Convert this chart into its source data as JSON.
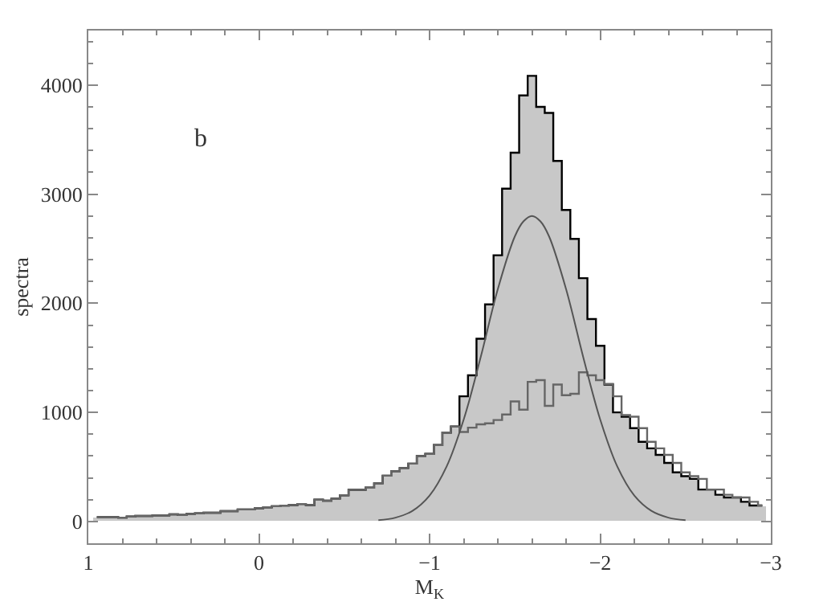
{
  "chart_data": {
    "type": "histogram",
    "xlabel": "M$_{K}$",
    "ylabel": "spectra",
    "annotations": [
      "b"
    ],
    "bins": [
      0.975,
      0.925,
      0.875,
      0.825,
      0.775,
      0.725,
      0.675,
      0.625,
      0.575,
      0.525,
      0.475,
      0.425,
      0.375,
      0.325,
      0.275,
      0.225,
      0.175,
      0.125,
      0.075,
      0.025,
      -0.025,
      -0.075,
      -0.125,
      -0.175,
      -0.225,
      -0.275,
      -0.325,
      -0.375,
      -0.425,
      -0.475,
      -0.525,
      -0.575,
      -0.625,
      -0.675,
      -0.725,
      -0.775,
      -0.825,
      -0.875,
      -0.925,
      -0.975,
      -1.025,
      -1.075,
      -1.125,
      -1.175,
      -1.225,
      -1.275,
      -1.325,
      -1.375,
      -1.425,
      -1.475,
      -1.525,
      -1.575,
      -1.625,
      -1.675,
      -1.725,
      -1.775,
      -1.825,
      -1.875,
      -1.925,
      -1.975,
      -2.025,
      -2.075,
      -2.125,
      -2.175,
      -2.225,
      -2.275,
      -2.325,
      -2.375,
      -2.425,
      -2.475,
      -2.525,
      -2.575,
      -2.625,
      -2.675,
      -2.725,
      -2.775,
      -2.825,
      -2.875,
      -2.925,
      -2.975
    ],
    "series": [
      {
        "color": "#c8c8c8",
        "values": [
          40,
          40,
          40,
          35,
          45,
          50,
          50,
          55,
          55,
          65,
          60,
          70,
          75,
          80,
          80,
          95,
          95,
          110,
          110,
          120,
          130,
          140,
          145,
          150,
          160,
          150,
          200,
          190,
          210,
          240,
          290,
          290,
          310,
          350,
          420,
          460,
          490,
          530,
          600,
          620,
          700,
          815,
          870,
          1147,
          1340,
          1675,
          1990,
          2440,
          3050,
          3380,
          3905,
          4085,
          3800,
          3745,
          3305,
          2855,
          2590,
          2230,
          1855,
          1610,
          1255,
          1000,
          960,
          855,
          730,
          670,
          610,
          537,
          450,
          415,
          390,
          293,
          293,
          245,
          220,
          220,
          180,
          146,
          146
        ]
      },
      {
        "type": "step",
        "color": "#000000",
        "x": [
          0.95,
          0.9,
          0.85,
          0.8,
          0.75,
          0.7,
          0.65,
          0.6,
          0.55,
          0.5,
          0.45,
          0.4,
          0.35,
          0.3,
          0.25,
          0.2,
          0.15,
          0.1,
          0.05,
          0.0,
          -0.05,
          -0.1,
          -0.15,
          -0.2,
          -0.25,
          -0.3,
          -0.35,
          -0.4,
          -0.45,
          -0.5,
          -0.55,
          -0.6,
          -0.65,
          -0.7,
          -0.75,
          -0.8,
          -0.85,
          -0.9,
          -0.95,
          -1.0,
          -1.05,
          -1.1,
          -1.15,
          -1.2,
          -1.25,
          -1.3,
          -1.35,
          -1.4,
          -1.45,
          -1.5,
          -1.55,
          -1.6,
          -1.65,
          -1.7,
          -1.75,
          -1.8,
          -1.85,
          -1.9,
          -1.95,
          -2.0,
          -2.05,
          -2.1,
          -2.15,
          -2.2,
          -2.25,
          -2.3,
          -2.35,
          -2.4,
          -2.45,
          -2.5,
          -2.55,
          -2.6,
          -2.65,
          -2.7,
          -2.75,
          -2.8,
          -2.85,
          -2.9,
          -2.95
        ],
        "values": [
          40,
          40,
          40,
          35,
          45,
          50,
          50,
          55,
          55,
          65,
          60,
          70,
          75,
          80,
          80,
          95,
          95,
          110,
          110,
          120,
          130,
          140,
          145,
          150,
          160,
          150,
          200,
          190,
          210,
          240,
          290,
          290,
          310,
          350,
          420,
          460,
          490,
          530,
          600,
          620,
          700,
          815,
          870,
          1147,
          1340,
          1675,
          1990,
          2440,
          3050,
          3380,
          3905,
          4085,
          3800,
          3745,
          3305,
          2855,
          2590,
          2230,
          1855,
          1610,
          1255,
          1000,
          960,
          855,
          730,
          670,
          610,
          537,
          450,
          415,
          390,
          293,
          293,
          245,
          220,
          220,
          180,
          146,
          146
        ]
      },
      {
        "type": "step",
        "color": "#666666",
        "x": [
          0.95,
          0.9,
          0.85,
          0.8,
          0.75,
          0.7,
          0.65,
          0.6,
          0.55,
          0.5,
          0.45,
          0.4,
          0.35,
          0.3,
          0.25,
          0.2,
          0.15,
          0.1,
          0.05,
          0.0,
          -0.05,
          -0.1,
          -0.15,
          -0.2,
          -0.25,
          -0.3,
          -0.35,
          -0.4,
          -0.45,
          -0.5,
          -0.55,
          -0.6,
          -0.65,
          -0.7,
          -0.75,
          -0.8,
          -0.85,
          -0.9,
          -0.95,
          -1.0,
          -1.05,
          -1.1,
          -1.15,
          -1.2,
          -1.25,
          -1.3,
          -1.35,
          -1.4,
          -1.45,
          -1.5,
          -1.55,
          -1.6,
          -1.65,
          -1.7,
          -1.75,
          -1.8,
          -1.85,
          -1.9,
          -1.95,
          -2.0,
          -2.05,
          -2.1,
          -2.15,
          -2.2,
          -2.25,
          -2.3,
          -2.35,
          -2.4,
          -2.45,
          -2.5,
          -2.55,
          -2.6,
          -2.65,
          -2.7,
          -2.75,
          -2.8,
          -2.85,
          -2.9,
          -2.95
        ],
        "values": [
          40,
          40,
          40,
          35,
          45,
          50,
          50,
          55,
          55,
          65,
          60,
          70,
          75,
          80,
          80,
          95,
          95,
          110,
          110,
          120,
          130,
          140,
          145,
          150,
          160,
          150,
          200,
          190,
          210,
          240,
          290,
          290,
          310,
          350,
          420,
          460,
          490,
          530,
          600,
          620,
          700,
          815,
          870,
          820,
          860,
          890,
          900,
          930,
          980,
          1100,
          1025,
          1280,
          1295,
          1060,
          1255,
          1157,
          1170,
          1367,
          1340,
          1295,
          1260,
          1147,
          975,
          960,
          855,
          730,
          670,
          610,
          537,
          450,
          415,
          390,
          293,
          293,
          245,
          220,
          220,
          180,
          146
        ]
      },
      {
        "type": "line",
        "color": "#555555",
        "x": [
          -0.7,
          -0.8,
          -0.9,
          -1.0,
          -1.1,
          -1.2,
          -1.3,
          -1.4,
          -1.5,
          -1.55,
          -1.6,
          -1.65,
          -1.7,
          -1.8,
          -1.9,
          -2.0,
          -2.1,
          -2.2,
          -2.3,
          -2.4,
          -2.5
        ],
        "values": [
          11,
          35,
          97,
          237,
          504,
          934,
          1510,
          2130,
          2614,
          2750,
          2800,
          2750,
          2614,
          2130,
          1510,
          934,
          504,
          237,
          97,
          35,
          11
        ]
      }
    ],
    "xlim": [
      1,
      -3
    ],
    "xticks": [
      1,
      0,
      {
        "value": -1,
        "label": "−1"
      },
      {
        "value": -2,
        "label": "−2"
      },
      {
        "value": -3,
        "label": "−3"
      }
    ],
    "ylim": [
      -200,
      4500
    ],
    "yticks": [
      0,
      1000,
      2000,
      3000,
      4000
    ]
  }
}
